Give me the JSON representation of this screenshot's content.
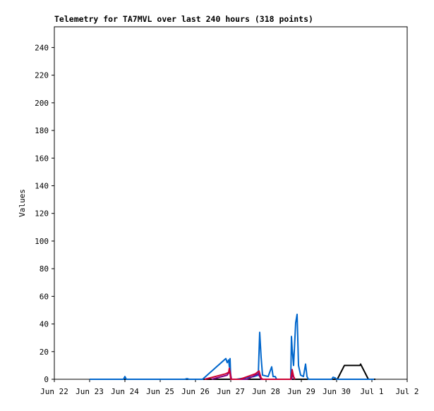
{
  "chart_data": {
    "type": "line",
    "title": "Telemetry for TA7MVL over last 240 hours (318 points)",
    "y_label": "Values",
    "xlim": [
      0,
      10
    ],
    "xticks": [
      {
        "value": 0,
        "label": "Jun 22"
      },
      {
        "value": 1,
        "label": "Jun 23"
      },
      {
        "value": 2,
        "label": "Jun 24"
      },
      {
        "value": 3,
        "label": "Jun 25"
      },
      {
        "value": 4,
        "label": "Jun 26"
      },
      {
        "value": 5,
        "label": "Jun 27"
      },
      {
        "value": 6,
        "label": "Jun 28"
      },
      {
        "value": 7,
        "label": "Jun 29"
      },
      {
        "value": 8,
        "label": "Jun 30"
      },
      {
        "value": 9,
        "label": "Jul 1"
      },
      {
        "value": 10,
        "label": "Jul 2"
      }
    ],
    "ylim": [
      0,
      255
    ],
    "yticks": [
      0,
      20,
      40,
      60,
      80,
      100,
      120,
      140,
      160,
      180,
      200,
      220,
      240
    ],
    "series": [
      {
        "color": "#000000",
        "x": [
          1.0,
          8.02,
          8.22,
          8.66,
          8.68,
          8.7,
          8.9,
          9.1
        ],
        "values": [
          0,
          0,
          10,
          10,
          11,
          10,
          0,
          0
        ]
      },
      {
        "color": "#0066cc",
        "x": [
          1.0,
          1.96,
          2.0,
          2.04,
          3.7,
          3.76,
          3.82,
          4.2,
          4.86,
          4.9,
          4.94,
          4.96,
          4.98,
          5.0,
          5.16,
          5.66,
          5.78,
          5.82,
          5.86,
          5.9,
          6.06,
          6.16,
          6.2,
          6.26,
          6.3,
          6.7,
          6.72,
          6.74,
          6.78,
          6.84,
          6.88,
          6.92,
          6.98,
          7.06,
          7.12,
          7.16,
          7.2,
          7.86,
          7.9,
          7.96,
          8.0,
          9.06
        ],
        "values": [
          0,
          0,
          2,
          0,
          0,
          0.5,
          0,
          0,
          15,
          12,
          14,
          9,
          15,
          0,
          0,
          2,
          3,
          34,
          16,
          3,
          2,
          9,
          2,
          2,
          0,
          0,
          31,
          22,
          10,
          41,
          47,
          10,
          3,
          2,
          11,
          2,
          0,
          0,
          1.5,
          1,
          0,
          0
        ]
      },
      {
        "color": "#800080",
        "x": [
          4.46,
          4.9,
          4.98,
          5.02,
          5.46,
          5.78,
          5.86,
          6.72,
          6.76,
          6.8
        ],
        "values": [
          0,
          3,
          6,
          0,
          0,
          4,
          0,
          0,
          4,
          0
        ]
      },
      {
        "color": "#cc0033",
        "x": [
          4.26,
          4.86,
          4.94,
          4.96,
          5.0,
          5.26,
          5.7,
          5.8,
          5.86,
          5.9,
          6.7,
          6.74,
          6.78,
          6.82
        ],
        "values": [
          0,
          4,
          5,
          8,
          0,
          0,
          4,
          6,
          1,
          0,
          0,
          7,
          2,
          0
        ]
      }
    ]
  }
}
